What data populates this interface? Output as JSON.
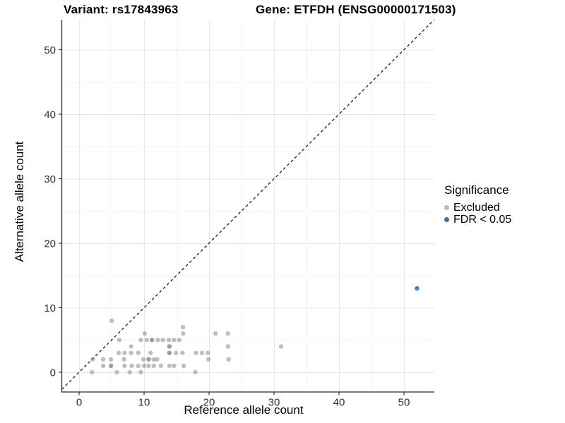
{
  "header": {
    "variant_title": "Variant: rs17843963",
    "gene_title": "Gene: ETFDH (ENSG00000171503)"
  },
  "chart_data": {
    "type": "scatter",
    "xlabel": "Reference allele count",
    "ylabel": "Alternative allele count",
    "x_ticks": [
      0,
      10,
      20,
      30,
      40,
      50
    ],
    "y_ticks": [
      0,
      10,
      20,
      30,
      40,
      50
    ],
    "xlim": [
      -2.7,
      54.7
    ],
    "ylim": [
      -3.1,
      54.6
    ],
    "grid": true,
    "identity_line": {
      "equation": "y = x",
      "style": "dashed",
      "color": "#1a1a1a"
    },
    "legend": {
      "title": "Significance",
      "position": "right",
      "entries": [
        {
          "label": "Excluded",
          "color": "#b9b9b9"
        },
        {
          "label": "FDR < 0.05",
          "color": "#3a6fa8"
        }
      ]
    },
    "series": [
      {
        "name": "Excluded",
        "color": "#808080",
        "opacity": 0.5,
        "points": [
          [
            5.0,
            8
          ],
          [
            16.0,
            7
          ],
          [
            10.1,
            6
          ],
          [
            16.0,
            6
          ],
          [
            21.0,
            6
          ],
          [
            22.9,
            6
          ],
          [
            6.2,
            5
          ],
          [
            9.5,
            5
          ],
          [
            10.4,
            5
          ],
          [
            11.2,
            5
          ],
          [
            11.2,
            5
          ],
          [
            12.1,
            5
          ],
          [
            12.9,
            5
          ],
          [
            13.8,
            5
          ],
          [
            14.6,
            5
          ],
          [
            15.4,
            5
          ],
          [
            8.0,
            4
          ],
          [
            13.9,
            4
          ],
          [
            13.9,
            4
          ],
          [
            22.9,
            4
          ],
          [
            31.1,
            4
          ],
          [
            6.1,
            3
          ],
          [
            7.0,
            3
          ],
          [
            8.0,
            3
          ],
          [
            9.1,
            3
          ],
          [
            11.0,
            3
          ],
          [
            13.9,
            3
          ],
          [
            13.9,
            3
          ],
          [
            14.9,
            3
          ],
          [
            15.9,
            3
          ],
          [
            18.0,
            3
          ],
          [
            18.9,
            3
          ],
          [
            19.8,
            3
          ],
          [
            2.1,
            2
          ],
          [
            3.7,
            2
          ],
          [
            4.9,
            2
          ],
          [
            6.9,
            2
          ],
          [
            9.9,
            2
          ],
          [
            10.7,
            2
          ],
          [
            10.7,
            2
          ],
          [
            11.5,
            2
          ],
          [
            12.0,
            2
          ],
          [
            19.9,
            2
          ],
          [
            23.0,
            2
          ],
          [
            3.7,
            1
          ],
          [
            4.9,
            1
          ],
          [
            4.9,
            1
          ],
          [
            7.0,
            1
          ],
          [
            8.1,
            1
          ],
          [
            9.1,
            1
          ],
          [
            10.0,
            1
          ],
          [
            10.7,
            1
          ],
          [
            11.5,
            1
          ],
          [
            12.6,
            1
          ],
          [
            13.9,
            1
          ],
          [
            14.6,
            1
          ],
          [
            16.1,
            1
          ],
          [
            2.0,
            0
          ],
          [
            5.8,
            0
          ],
          [
            7.8,
            0
          ],
          [
            9.5,
            0
          ],
          [
            17.9,
            0
          ]
        ]
      },
      {
        "name": "FDR < 0.05",
        "color": "#2f6db5",
        "opacity": 0.88,
        "points": [
          [
            52,
            13
          ]
        ]
      }
    ]
  },
  "colors": {
    "background": "#ffffff",
    "grid_major": "#e7e7e7",
    "grid_minor": "#f3f3f3",
    "axis_line": "#2b2b2b",
    "tick_label": "#303030"
  }
}
